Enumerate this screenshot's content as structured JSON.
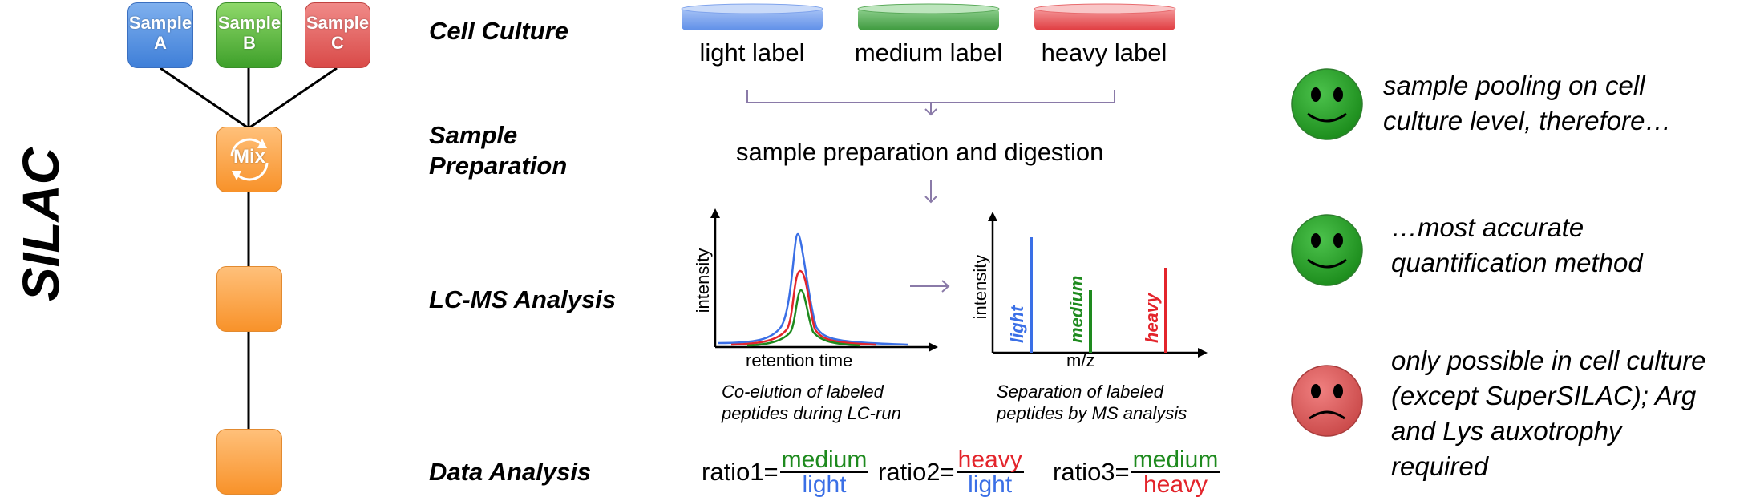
{
  "title": "SILAC",
  "samples": [
    {
      "line1": "Sample",
      "line2": "A",
      "color": "#4a86dd"
    },
    {
      "line1": "Sample",
      "line2": "B",
      "color": "#44a832"
    },
    {
      "line1": "Sample",
      "line2": "C",
      "color": "#de524f"
    }
  ],
  "mix_label": "Mix",
  "stages": {
    "cell_culture": "Cell Culture",
    "sample_prep_line1": "Sample",
    "sample_prep_line2": "Preparation",
    "lcms": "LC-MS Analysis",
    "data_analysis": "Data Analysis"
  },
  "dishes": [
    {
      "label": "light label",
      "color": "#6a96ee"
    },
    {
      "label": "medium label",
      "color": "#4aa54a"
    },
    {
      "label": "heavy label",
      "color": "#e8454a"
    }
  ],
  "prep_text": "sample preparation and digestion",
  "lc_plot": {
    "ylabel": "intensity",
    "xlabel": "retention time",
    "caption_line1": "Co-elution of labeled",
    "caption_line2": "peptides during LC-run"
  },
  "ms_plot": {
    "ylabel": "intensity",
    "xlabel": "m/z",
    "peaks": [
      {
        "label": "light",
        "color": "#3a6fe6"
      },
      {
        "label": "medium",
        "color": "#1e8a1e"
      },
      {
        "label": "heavy",
        "color": "#e3242b"
      }
    ],
    "caption_line1": "Separation of labeled",
    "caption_line2": "peptides by MS analysis"
  },
  "ratios": [
    {
      "prefix": "ratio1=",
      "num": "medium",
      "den": "light",
      "num_color": "#1e8a1e",
      "den_color": "#3a6fe6"
    },
    {
      "prefix": "ratio2=",
      "num": "heavy",
      "den": "light",
      "num_color": "#e3242b",
      "den_color": "#3a6fe6"
    },
    {
      "prefix": "ratio3=",
      "num": "medium",
      "den": "heavy",
      "num_color": "#1e8a1e",
      "den_color": "#e3242b"
    }
  ],
  "pros_cons": [
    {
      "mood": "happy",
      "line1": "sample pooling on cell",
      "line2": "culture level, therefore…"
    },
    {
      "mood": "happy",
      "line1": "…most accurate",
      "line2": "quantification method"
    },
    {
      "mood": "sad",
      "line1": "only possible in cell culture",
      "line2": "(except SuperSILAC); Arg",
      "line3": "and Lys auxotrophy",
      "line4": "required"
    }
  ]
}
